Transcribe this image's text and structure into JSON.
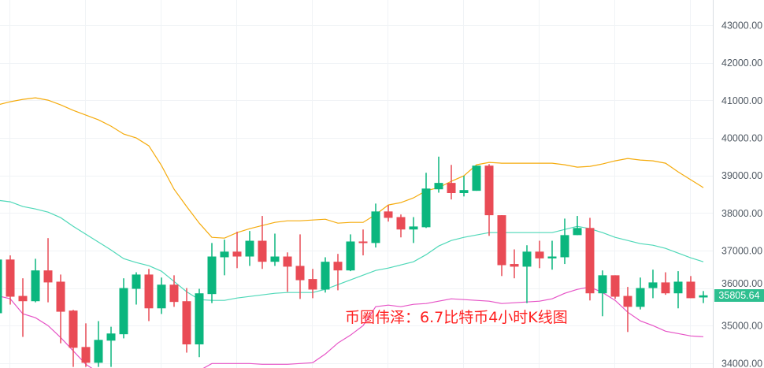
{
  "chart_data": {
    "type": "candlestick",
    "title": "",
    "ylim": [
      33800,
      43400
    ],
    "y_ticks": [
      "34000.00",
      "35000.00",
      "36000.00",
      "37000.00",
      "38000.00",
      "39000.00",
      "40000.00",
      "41000.00",
      "42000.00",
      "43000.00"
    ],
    "grid": true,
    "colors": {
      "up": "#0bb67e",
      "down": "#e94b55",
      "upper_band": "#f5ab0c",
      "middle_band": "#4fd8b8",
      "lower_band": "#e653c6",
      "grid": "#f0f3f6",
      "price_tag": "#2ebf90"
    },
    "last_price": "35805.64",
    "candles": [
      [
        35330,
        36800,
        35200,
        36760
      ],
      [
        36760,
        36870,
        35560,
        35770
      ],
      [
        35790,
        36260,
        34700,
        35650
      ],
      [
        35650,
        36780,
        35620,
        36470
      ],
      [
        36470,
        37330,
        35620,
        36150
      ],
      [
        36170,
        36360,
        34530,
        35370
      ],
      [
        35400,
        35420,
        33900,
        34410
      ],
      [
        34430,
        35060,
        33900,
        34010
      ],
      [
        34010,
        35120,
        33900,
        34620
      ],
      [
        34600,
        34970,
        33900,
        34790
      ],
      [
        34770,
        36260,
        34660,
        36000
      ],
      [
        35980,
        36420,
        35560,
        36360
      ],
      [
        36360,
        36510,
        35120,
        35460
      ],
      [
        35460,
        36280,
        35310,
        36090
      ],
      [
        36090,
        36340,
        35500,
        35630
      ],
      [
        35650,
        36000,
        34280,
        34500
      ],
      [
        34500,
        35980,
        34160,
        35860
      ],
      [
        35840,
        37200,
        35600,
        36840
      ],
      [
        36820,
        37290,
        36340,
        36970
      ],
      [
        36970,
        37500,
        36530,
        36840
      ],
      [
        36840,
        37520,
        36590,
        37260
      ],
      [
        37260,
        37920,
        36510,
        36700
      ],
      [
        36700,
        37450,
        36590,
        36840
      ],
      [
        36840,
        36950,
        35900,
        36570
      ],
      [
        36590,
        37430,
        35710,
        36210
      ],
      [
        36240,
        36510,
        35730,
        35960
      ],
      [
        35960,
        36820,
        35880,
        36700
      ],
      [
        36700,
        36910,
        35940,
        36470
      ],
      [
        36470,
        37430,
        36450,
        37240
      ],
      [
        37240,
        37560,
        36870,
        37200
      ],
      [
        37200,
        38250,
        37080,
        38040
      ],
      [
        38040,
        38210,
        37770,
        37870
      ],
      [
        37890,
        37960,
        37350,
        37560
      ],
      [
        37560,
        37890,
        37200,
        37640
      ],
      [
        37620,
        39070,
        37600,
        38650
      ],
      [
        38630,
        39500,
        38540,
        38800
      ],
      [
        38800,
        39280,
        38360,
        38530
      ],
      [
        38530,
        38990,
        38440,
        38610
      ],
      [
        38590,
        39260,
        38590,
        39260
      ],
      [
        39260,
        39300,
        37390,
        37940
      ],
      [
        37940,
        37940,
        36320,
        36610
      ],
      [
        36640,
        37030,
        36260,
        36570
      ],
      [
        36570,
        37140,
        35600,
        36970
      ],
      [
        36970,
        37260,
        36530,
        36790
      ],
      [
        36790,
        37260,
        36490,
        36840
      ],
      [
        36820,
        37850,
        36640,
        37410
      ],
      [
        37410,
        37920,
        37410,
        37600
      ],
      [
        37600,
        37870,
        35670,
        35860
      ],
      [
        35860,
        36470,
        35250,
        36340
      ],
      [
        36340,
        36340,
        35710,
        35770
      ],
      [
        35790,
        36030,
        34830,
        35500
      ],
      [
        35500,
        36280,
        35430,
        36000
      ],
      [
        36000,
        36490,
        35730,
        36150
      ],
      [
        36150,
        36420,
        35820,
        35860
      ],
      [
        35860,
        36450,
        35460,
        36170
      ],
      [
        36170,
        36320,
        35730,
        35730
      ],
      [
        35750,
        35920,
        35600,
        35805.64
      ]
    ],
    "upper_band": [
      40879,
      40963,
      41026,
      41068,
      41005,
      40879,
      40732,
      40606,
      40480,
      40312,
      40102,
      39997,
      39787,
      39262,
      38632,
      38170,
      37729,
      37351,
      37330,
      37477,
      37582,
      37666,
      37750,
      37792,
      37792,
      37813,
      37834,
      37729,
      37750,
      37750,
      37960,
      38212,
      38275,
      38401,
      38590,
      38674,
      38842,
      38989,
      39283,
      39346,
      39325,
      39325,
      39325,
      39325,
      39325,
      39283,
      39220,
      39241,
      39304,
      39388,
      39451,
      39409,
      39388,
      39325,
      39094,
      38884,
      38674
    ],
    "middle_band": [
      38338,
      38296,
      38170,
      38107,
      38023,
      37876,
      37645,
      37435,
      37225,
      37015,
      36784,
      36679,
      36595,
      36448,
      36175,
      35902,
      35692,
      35671,
      35671,
      35734,
      35776,
      35818,
      35860,
      35881,
      35881,
      35881,
      35965,
      36091,
      36217,
      36343,
      36469,
      36532,
      36616,
      36700,
      36889,
      37120,
      37267,
      37351,
      37414,
      37477,
      37477,
      37477,
      37477,
      37477,
      37477,
      37561,
      37645,
      37582,
      37477,
      37351,
      37267,
      37183,
      37141,
      37057,
      36931,
      36805,
      36700
    ],
    "lower_band": [
      35797,
      35713,
      35314,
      35209,
      34999,
      34684,
      34327,
      33970,
      33750,
      33600,
      33500,
      33450,
      33400,
      33450,
      33550,
      33750,
      33802,
      33991,
      33991,
      33991,
      33991,
      33970,
      33970,
      33970,
      33991,
      34012,
      34243,
      34537,
      34747,
      34999,
      35503,
      35545,
      35503,
      35566,
      35587,
      35650,
      35713,
      35692,
      35671,
      35650,
      35587,
      35608,
      35629,
      35650,
      35713,
      35860,
      35965,
      36028,
      35881,
      35671,
      35356,
      35125,
      34999,
      34852,
      34789,
      34726,
      34705
    ]
  },
  "watermark": "币圈伟泽：6.7比特币4小时K线图"
}
